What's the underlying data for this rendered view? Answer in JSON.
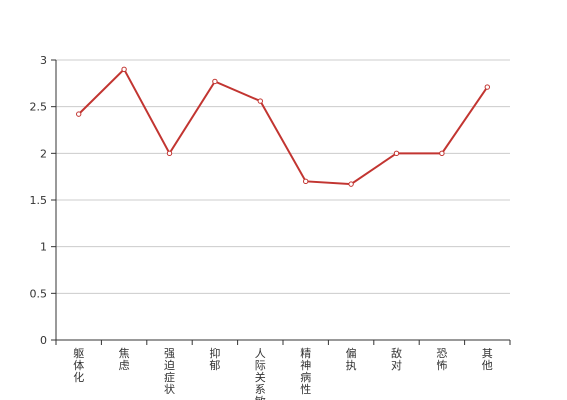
{
  "chart_data": {
    "type": "line",
    "categories": [
      "躯体化",
      "焦虑",
      "强迫症状",
      "抑郁",
      "人际关系敏感",
      "精神病性",
      "偏执",
      "敌对",
      "恐怖",
      "其他"
    ],
    "series": [
      {
        "color": "#c23531",
        "values": [
          2.42,
          2.9,
          2.0,
          2.77,
          2.56,
          1.7,
          1.67,
          2.0,
          2.0,
          2.71
        ]
      }
    ],
    "ylim": [
      0,
      3
    ],
    "yticks": [
      0,
      0.5,
      1,
      1.5,
      2,
      2.5,
      3
    ],
    "grid": true
  }
}
